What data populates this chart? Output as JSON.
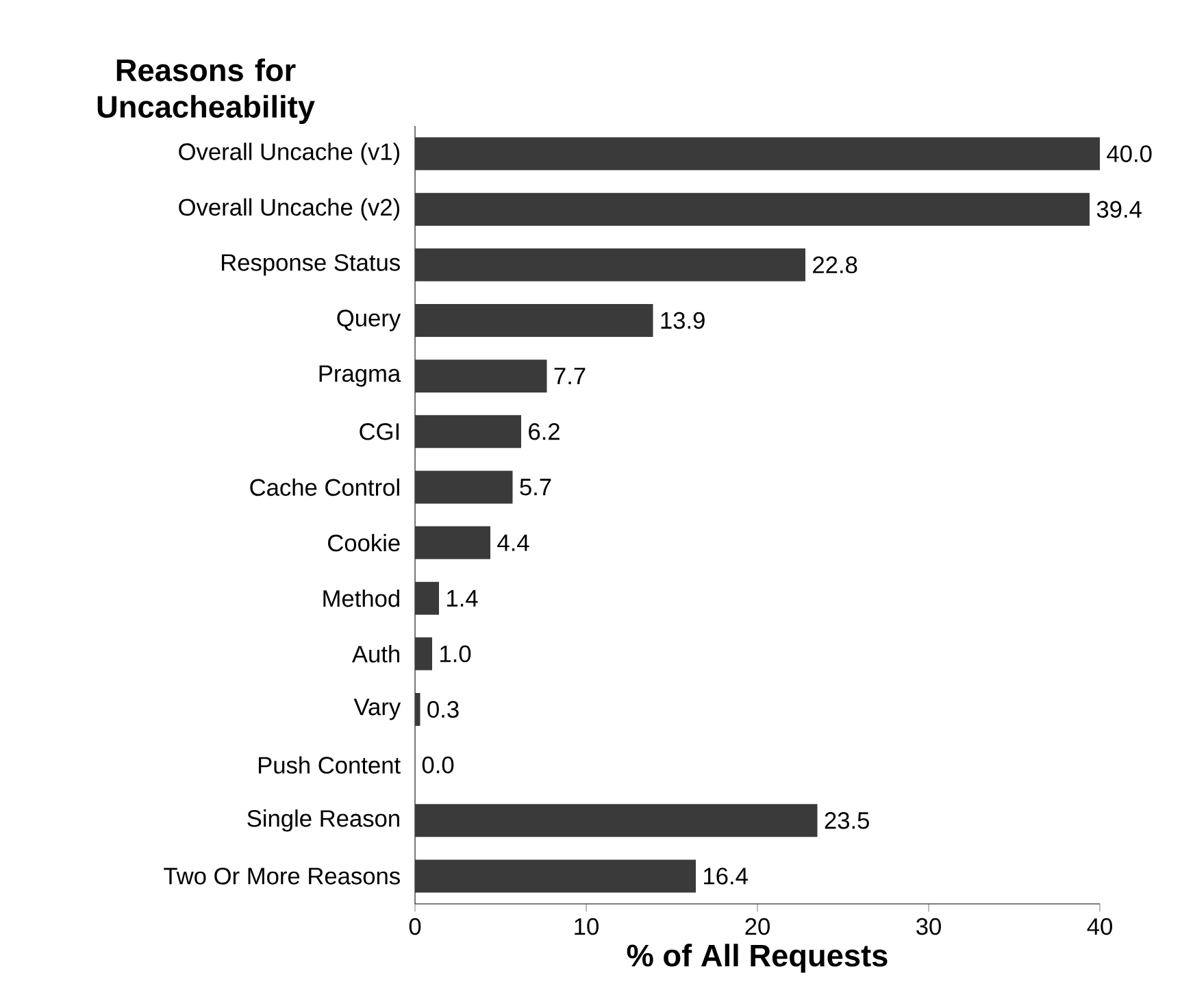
{
  "chart_data": {
    "type": "bar",
    "orientation": "horizontal",
    "title": "Reasons for Uncacheability",
    "xlabel": "% of All Requests",
    "categories": [
      "Overall Uncache (v1)",
      "Overall Uncache (v2)",
      "Response Status",
      "Query",
      "Pragma",
      "CGI",
      "Cache Control",
      "Cookie",
      "Method",
      "Auth",
      "Vary",
      "Push Content",
      "Single Reason",
      "Two Or More Reasons"
    ],
    "values": [
      40.0,
      39.4,
      22.8,
      13.9,
      7.7,
      6.2,
      5.7,
      4.4,
      1.4,
      1.0,
      0.3,
      0.0,
      23.5,
      16.4
    ],
    "value_labels": [
      "40.0",
      "39.4",
      "22.8",
      "13.9",
      "7.7",
      "6.2",
      "5.7",
      "4.4",
      "1.4",
      "1.0",
      "0.3",
      "0.0",
      "23.5",
      "16.4"
    ],
    "color": "#3a3a3a",
    "xlim": [
      0,
      40
    ],
    "xticks": [
      0,
      10,
      20,
      30,
      40
    ]
  }
}
